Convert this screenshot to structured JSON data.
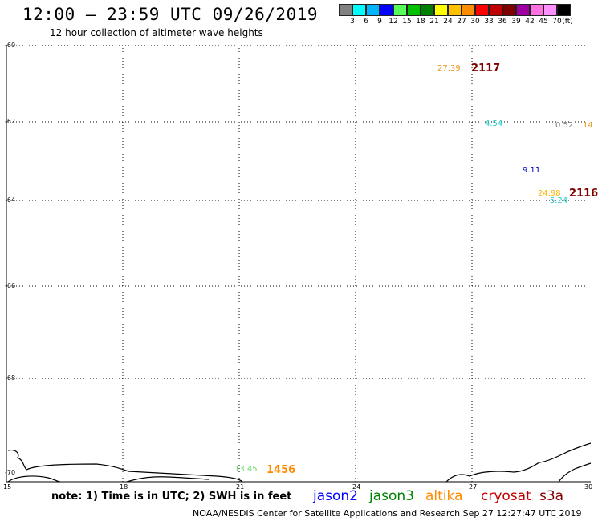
{
  "header": {
    "title": "12:00 — 23:59 UTC 09/26/2019",
    "subtitle": "12 hour collection of altimeter wave heights"
  },
  "scale": {
    "colors": [
      "#808080",
      "#00ffff",
      "#00b4ff",
      "#0000ff",
      "#55ff55",
      "#00c000",
      "#008000",
      "#ffff00",
      "#ffc000",
      "#ff8c00",
      "#ff0000",
      "#c00000",
      "#800000",
      "#a000a0",
      "#ff70e0",
      "#ff90ff",
      "#000000"
    ],
    "labels": [
      "3",
      "6",
      "9",
      "12",
      "15",
      "18",
      "21",
      "24",
      "27",
      "30",
      "33",
      "36",
      "39",
      "42",
      "45",
      "70",
      "(ft)"
    ]
  },
  "axes": {
    "y_ticks": [
      "-60",
      "-62",
      "-64",
      "-66",
      "-68",
      "-70"
    ],
    "x_ticks": [
      "15",
      "18",
      "21",
      "24",
      "27",
      "30"
    ]
  },
  "observations": [
    {
      "text": "27.39",
      "color": "#e8961e"
    },
    {
      "text": "4.54",
      "color": "#20c8c8"
    },
    {
      "text": "0.52",
      "color": "#808080"
    },
    {
      "text": "14",
      "color": "#e8961e"
    },
    {
      "text": "9.11",
      "color": "#0000c0"
    },
    {
      "text": "24.98",
      "color": "#ffb400"
    },
    {
      "text": "5.24",
      "color": "#20c8c8"
    },
    {
      "text": "13.45",
      "color": "#66dd66"
    }
  ],
  "passes": [
    {
      "text": "2117",
      "color": "#800000"
    },
    {
      "text": "2116",
      "color": "#800000"
    },
    {
      "text": "1456",
      "color": "#ff8c00"
    }
  ],
  "footer": {
    "note": "note: 1) Time is in UTC; 2) SWH is in feet",
    "satellites": [
      {
        "name": "jason2",
        "color": "#0000ff"
      },
      {
        "name": "jason3",
        "color": "#008000"
      },
      {
        "name": "altika",
        "color": "#ff8c00"
      },
      {
        "name": "cryosat",
        "color": "#c00000"
      },
      {
        "name": "s3a",
        "color": "#800000"
      }
    ],
    "credit": "NOAA/NESDIS Center for Satellite Applications and Research    Sep 27 12:27:47 UTC 2019"
  }
}
